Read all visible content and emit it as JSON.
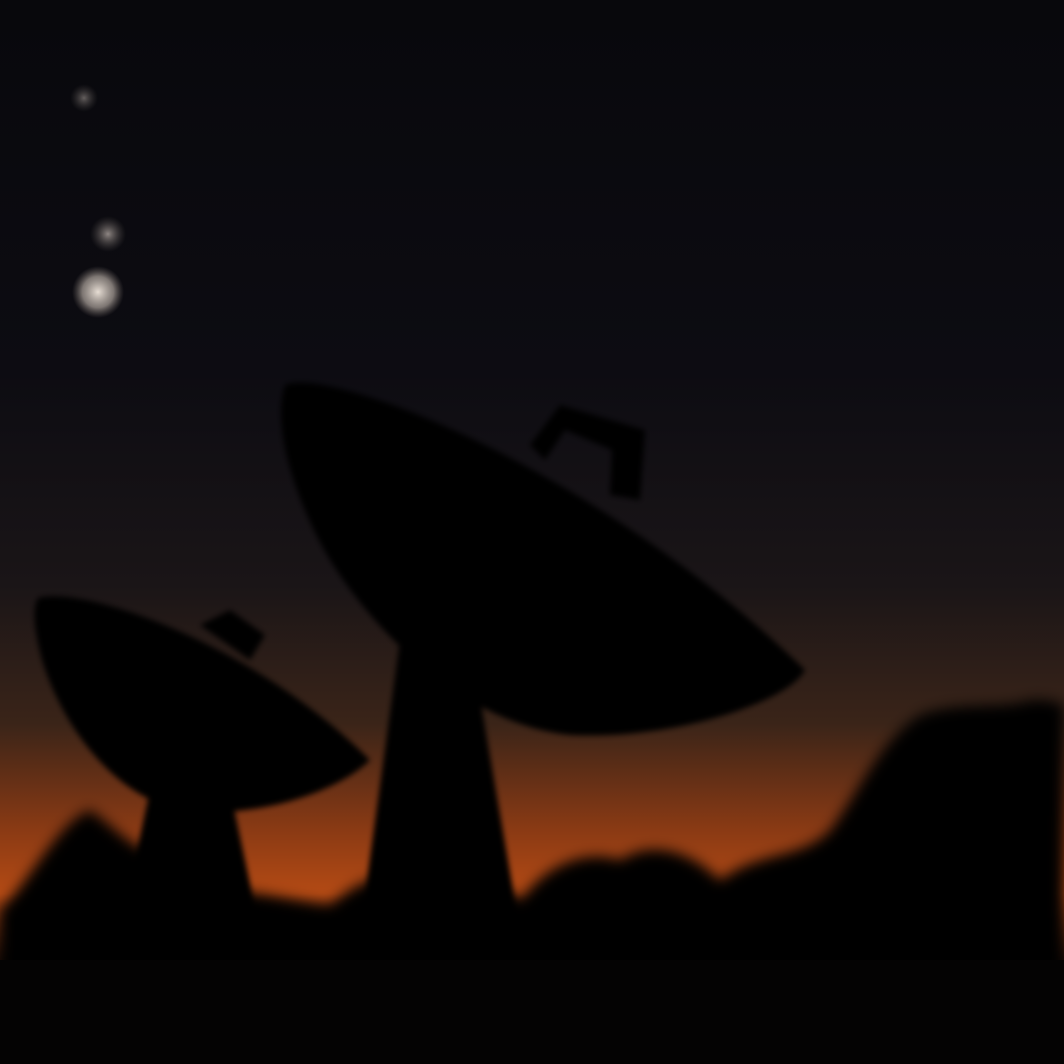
{
  "scene": {
    "subject": "radio-telescope-dishes-at-dusk",
    "colors": {
      "sky_top": "#08080c",
      "sky_upper": "#0d0c12",
      "sky_mid": "#1a1517",
      "sky_low": "#3a2418",
      "horizon_glow": "#8a3a14",
      "horizon_bright": "#b44a14",
      "silhouette": "#050404",
      "moon": "#e6dcd2",
      "planet": "#cfc4bc"
    },
    "celestial_bodies": [
      {
        "name": "moon-crescent",
        "kind": "moon"
      },
      {
        "name": "planet-venus",
        "kind": "planet"
      },
      {
        "name": "planet-jupiter",
        "kind": "planet"
      }
    ],
    "dishes": [
      {
        "name": "large-dish",
        "tilt": "raised"
      },
      {
        "name": "small-dish",
        "tilt": "lowered"
      }
    ]
  }
}
